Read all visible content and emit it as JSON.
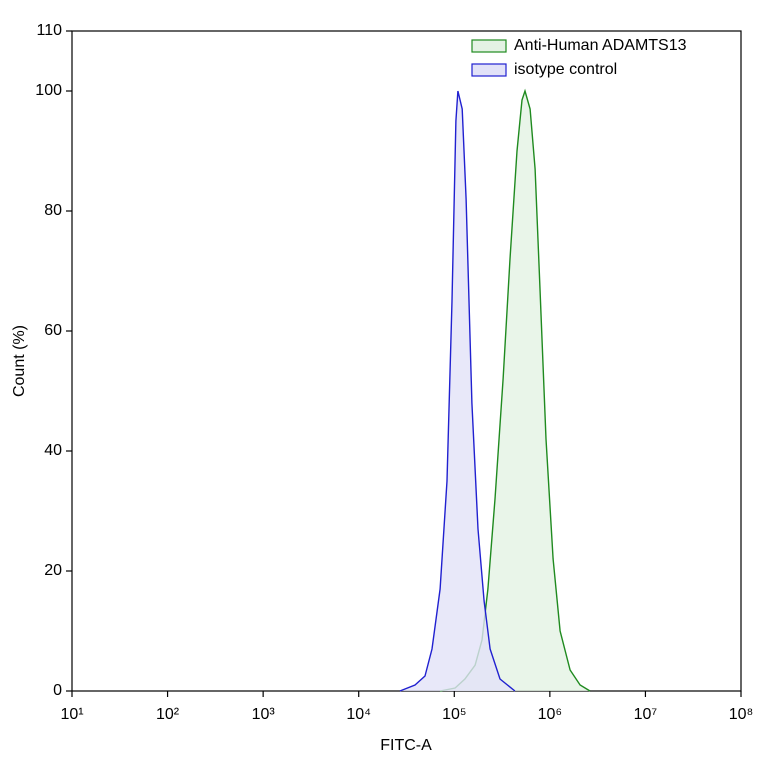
{
  "chart_data": {
    "type": "area",
    "x_label": "FITC-A",
    "y_label": "Count  (%)",
    "xscale": "log",
    "xlim": [
      10,
      100000000
    ],
    "xticks": [
      {
        "value": 10,
        "label": "10¹"
      },
      {
        "value": 100,
        "label": "10²"
      },
      {
        "value": 1000,
        "label": "10³"
      },
      {
        "value": 10000,
        "label": "10⁴"
      },
      {
        "value": 100000,
        "label": "10⁵"
      },
      {
        "value": 1000000,
        "label": "10⁶"
      },
      {
        "value": 10000000,
        "label": "10⁷"
      },
      {
        "value": 100000000,
        "label": "10⁸"
      }
    ],
    "ylim": [
      0,
      110
    ],
    "yticks": [
      0,
      20,
      40,
      60,
      80,
      100,
      110
    ],
    "legend": "top-right",
    "series": [
      {
        "name": "Anti-Human ADAMTS13",
        "color": "#1f8a1f",
        "fill": "#e4f2e4",
        "x": [
          71000,
          102000,
          129000,
          165000,
          195000,
          225000,
          267000,
          324000,
          383000,
          453000,
          511000,
          550000,
          621000,
          700000,
          789000,
          912000,
          1080000,
          1280000,
          1630000,
          2070000,
          2630000
        ],
        "values": [
          0,
          0.5,
          2,
          4.3,
          8.5,
          17,
          32,
          52,
          72,
          90,
          98.5,
          100,
          97,
          87,
          67,
          42,
          22,
          10,
          3.5,
          1,
          0
        ]
      },
      {
        "name": "isotype control",
        "color": "#2020d0",
        "fill": "#e2e2f8",
        "x": [
          27000,
          38800,
          49400,
          58500,
          71000,
          84000,
          94700,
          104000,
          109000,
          121000,
          133000,
          153000,
          177000,
          205000,
          237000,
          301000,
          431000
        ],
        "values": [
          0,
          1,
          2.5,
          7,
          17,
          35,
          65,
          95,
          100,
          97,
          82,
          48,
          27,
          15,
          7,
          2,
          0
        ]
      }
    ]
  }
}
